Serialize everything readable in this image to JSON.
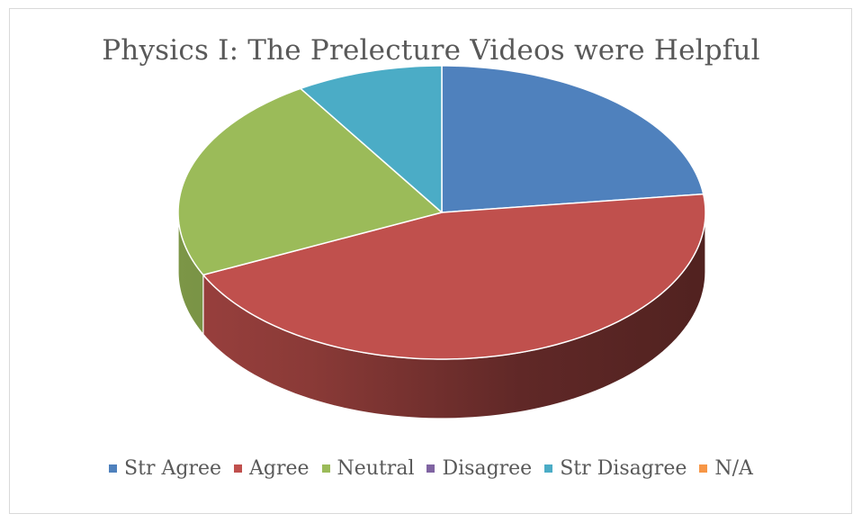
{
  "chart_data": {
    "type": "pie",
    "style": "3d",
    "title": "Physics I: The Prelecture Videos were Helpful",
    "legend_position": "bottom",
    "slices": [
      {
        "label": "Str Agree",
        "value": 23,
        "color": "#4F81BD"
      },
      {
        "label": "Agree",
        "value": 45,
        "color": "#C0504D"
      },
      {
        "label": "Neutral",
        "value": 23,
        "color": "#9BBB59"
      },
      {
        "label": "Disagree",
        "value": 0,
        "color": "#8064A2"
      },
      {
        "label": "Str Disagree",
        "value": 9,
        "color": "#4BACC6"
      },
      {
        "label": "N/A",
        "value": 0,
        "color": "#F79646"
      }
    ]
  }
}
